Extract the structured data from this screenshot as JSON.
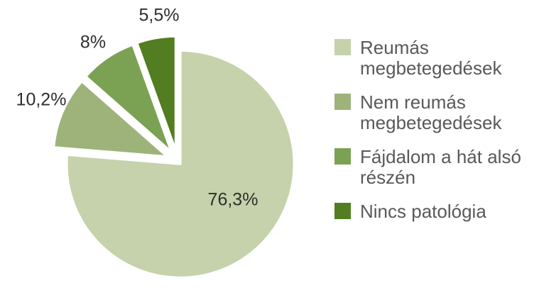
{
  "chart_data": {
    "type": "pie",
    "title": "",
    "unit": "%",
    "start_angle_deg": 0,
    "direction": "clockwise",
    "legend_position": "right",
    "background_color": "#ffffff",
    "label_text_color": "#2e2e2e",
    "legend_text_color": "#595959",
    "slice_border_color": "#ffffff",
    "slices": [
      {
        "name": "Reumás megbetegedések",
        "value": 76.3,
        "display_label": "76,3%",
        "legend_label": "Reumás\nmegbetegedések",
        "color": "#c5d2ab"
      },
      {
        "name": "Nem reumás megbetegedések",
        "value": 10.2,
        "display_label": "10,2%",
        "legend_label": "Nem reumás\nmegbetegedések",
        "color": "#9db37a"
      },
      {
        "name": "Fájdalom a hát alsó részén",
        "value": 8,
        "display_label": "8%",
        "legend_label": "Fájdalom a hát alsó\nrészén",
        "color": "#7ba152"
      },
      {
        "name": "Nincs patológia",
        "value": 5.5,
        "display_label": "5,5%",
        "legend_label": "Nincs patológia",
        "color": "#527d20"
      }
    ]
  }
}
